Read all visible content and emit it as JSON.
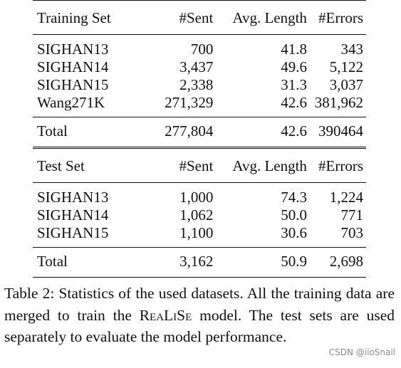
{
  "table": {
    "train_header": [
      "Training Set",
      "#Sent",
      "Avg. Length",
      "#Errors"
    ],
    "train_rows": [
      [
        "SIGHAN13",
        "700",
        "41.8",
        "343"
      ],
      [
        "SIGHAN14",
        "3,437",
        "49.6",
        "5,122"
      ],
      [
        "SIGHAN15",
        "2,338",
        "31.3",
        "3,037"
      ],
      [
        "Wang271K",
        "271,329",
        "42.6",
        "381,962"
      ]
    ],
    "train_total": [
      "Total",
      "277,804",
      "42.6",
      "390464"
    ],
    "test_header": [
      "Test Set",
      "#Sent",
      "Avg. Length",
      "#Errors"
    ],
    "test_rows": [
      [
        "SIGHAN13",
        "1,000",
        "74.3",
        "1,224"
      ],
      [
        "SIGHAN14",
        "1,062",
        "50.0",
        "771"
      ],
      [
        "SIGHAN15",
        "1,100",
        "30.6",
        "703"
      ]
    ],
    "test_total": [
      "Total",
      "3,162",
      "50.9",
      "2,698"
    ]
  },
  "caption": {
    "prefix": "Table 2: Statistics of the used datasets. All the training data are merged to train the",
    "model_name": "ReaLiSe",
    "suffix": "model. The test sets are used separately to evaluate the model performance."
  },
  "watermark": "CSDN @iioSnail"
}
